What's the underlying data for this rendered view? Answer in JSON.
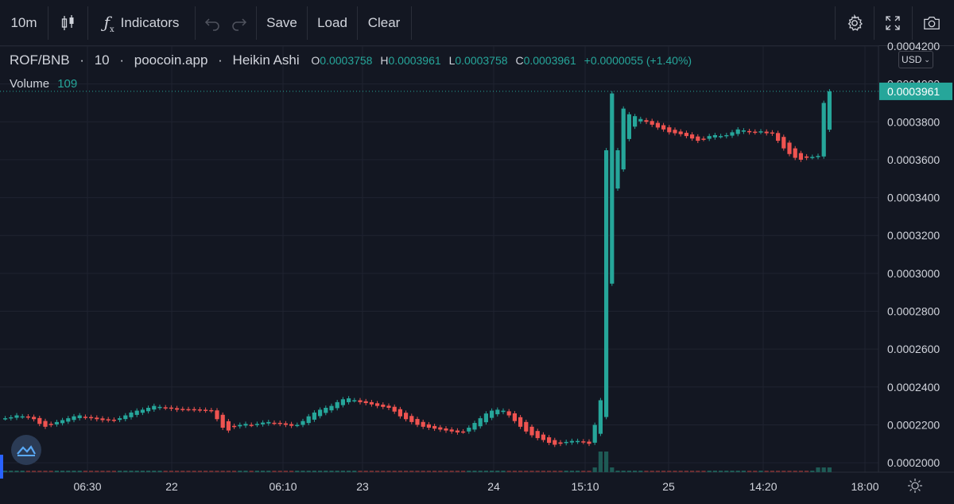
{
  "toolbar": {
    "interval": "10m",
    "indicators_label": "Indicators",
    "save_label": "Save",
    "load_label": "Load",
    "clear_label": "Clear"
  },
  "legend": {
    "symbol": "ROF/BNB",
    "interval": "10",
    "source": "poocoin.app",
    "chart_style": "Heikin Ashi",
    "o_label": "O",
    "o_value": "0.0003758",
    "h_label": "H",
    "h_value": "0.0003961",
    "l_label": "L",
    "l_value": "0.0003758",
    "c_label": "C",
    "c_value": "0.0003961",
    "change": "+0.0000055 (+1.40%)",
    "volume_label": "Volume",
    "volume_value": "109"
  },
  "currency": "USD",
  "colors": {
    "background": "#131722",
    "up": "#26a69a",
    "down": "#ef5350",
    "grid": "#1f2330",
    "price_tag": "#26a69a"
  },
  "chart_data": {
    "type": "candlestick",
    "style": "Heikin Ashi",
    "title": "ROF/BNB · 10 · poocoin.app",
    "y_axis": {
      "ticks": [
        "0.0004200",
        "0.0004000",
        "0.0003800",
        "0.0003600",
        "0.0003400",
        "0.0003200",
        "0.0003000",
        "0.0002800",
        "0.0002600",
        "0.0002400",
        "0.0002200",
        "0.0002000"
      ],
      "ylim": [
        0.000195,
        0.00042
      ],
      "side": "right"
    },
    "x_axis": {
      "ticks": [
        "06:30",
        "22",
        "06:10",
        "23",
        "24",
        "15:10",
        "25",
        "14:20",
        "18:00"
      ]
    },
    "last_price": "0.0003961",
    "last_price_value": 0.0003961,
    "grid": true,
    "candles_close": [
      0.0002235,
      0.000224,
      0.000225,
      0.0002245,
      0.000224,
      0.000223,
      0.0002205,
      0.000219,
      0.00022,
      0.0002215,
      0.0002225,
      0.0002235,
      0.0002245,
      0.000225,
      0.000224,
      0.0002235,
      0.000223,
      0.0002225,
      0.0002225,
      0.0002225,
      0.0002235,
      0.000225,
      0.0002265,
      0.0002275,
      0.000228,
      0.000229,
      0.00023,
      0.0002295,
      0.000229,
      0.0002285,
      0.000228,
      0.0002282,
      0.0002283,
      0.000228,
      0.0002278,
      0.0002276,
      0.0002275,
      0.000223,
      0.0002185,
      0.000217,
      0.000219,
      0.00022,
      0.0002205,
      0.00022,
      0.0002205,
      0.0002212,
      0.0002215,
      0.000221,
      0.0002205,
      0.00022,
      0.0002195,
      0.00022,
      0.000222,
      0.0002245,
      0.0002265,
      0.000228,
      0.000229,
      0.00023,
      0.000232,
      0.0002335,
      0.000234,
      0.000233,
      0.000232,
      0.0002315,
      0.0002308,
      0.00023,
      0.0002295,
      0.000229,
      0.000227,
      0.0002245,
      0.000223,
      0.0002215,
      0.00022,
      0.000219,
      0.0002185,
      0.000218,
      0.0002175,
      0.000217,
      0.0002165,
      0.000216,
      0.0002165,
      0.0002185,
      0.000221,
      0.0002235,
      0.000226,
      0.0002275,
      0.000228,
      0.0002275,
      0.000225,
      0.000222,
      0.000219,
      0.0002165,
      0.0002145,
      0.000213,
      0.000212,
      0.0002105,
      0.0002095,
      0.00021,
      0.000211,
      0.0002115,
      0.0002115,
      0.000211,
      0.00021,
      0.00022,
      0.000233,
      0.000365,
      0.000395,
      0.000365,
      0.000387,
      0.000384,
      0.000383,
      0.0003815,
      0.00038,
      0.0003785,
      0.000377,
      0.000376,
      0.0003745,
      0.000374,
      0.0003735,
      0.0003725,
      0.0003712,
      0.00037,
      0.000371,
      0.0003725,
      0.000373,
      0.0003725,
      0.000373,
      0.0003745,
      0.000376,
      0.0003755,
      0.0003745,
      0.0003745,
      0.000375,
      0.000374,
      0.0003738,
      0.00037,
      0.000366,
      0.000363,
      0.000361,
      0.00036,
      0.000361,
      0.0003615,
      0.000362,
      0.00039,
      0.0003961
    ]
  }
}
